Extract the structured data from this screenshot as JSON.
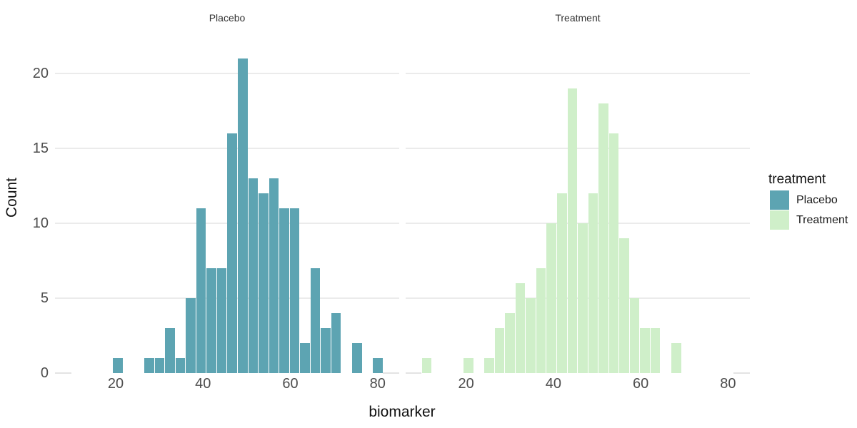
{
  "figure": {
    "background": "#ffffff",
    "grid_color": "#ebebeb"
  },
  "axes": {
    "x_title": "biomarker",
    "y_title": "Count"
  },
  "legend": {
    "title": "treatment",
    "items": [
      {
        "label": "Placebo",
        "color": "#5da4b2"
      },
      {
        "label": "Treatment",
        "color": "#cfefc9"
      }
    ]
  },
  "chart_data": {
    "type": "histogram",
    "facet_variable": "treatment",
    "facets": [
      "Placebo",
      "Treatment"
    ],
    "xlabel": "biomarker",
    "ylabel": "Count",
    "legend_title": "treatment",
    "legend_position": "right",
    "grid": "horizontal-major-only",
    "bin_start": 9.81,
    "bin_width": 2.38,
    "n_bins": 30,
    "x_ticks": [
      20,
      40,
      60,
      80
    ],
    "y_ticks": [
      0,
      5,
      10,
      15,
      20
    ],
    "xlim": [
      6.1,
      85.0
    ],
    "ylim": [
      0,
      22
    ],
    "series": [
      {
        "name": "Placebo",
        "color": "#5da4b2",
        "counts": [
          0,
          0,
          0,
          0,
          1,
          0,
          0,
          1,
          1,
          3,
          1,
          5,
          11,
          7,
          7,
          16,
          21,
          13,
          12,
          13,
          11,
          11,
          2,
          7,
          3,
          4,
          0,
          2,
          0,
          1
        ]
      },
      {
        "name": "Treatment",
        "color": "#cfefc9",
        "counts": [
          1,
          0,
          0,
          0,
          1,
          0,
          1,
          3,
          4,
          6,
          5,
          7,
          10,
          12,
          19,
          10,
          12,
          18,
          16,
          9,
          5,
          3,
          3,
          0,
          2,
          0,
          0,
          0,
          0,
          0
        ]
      }
    ]
  }
}
